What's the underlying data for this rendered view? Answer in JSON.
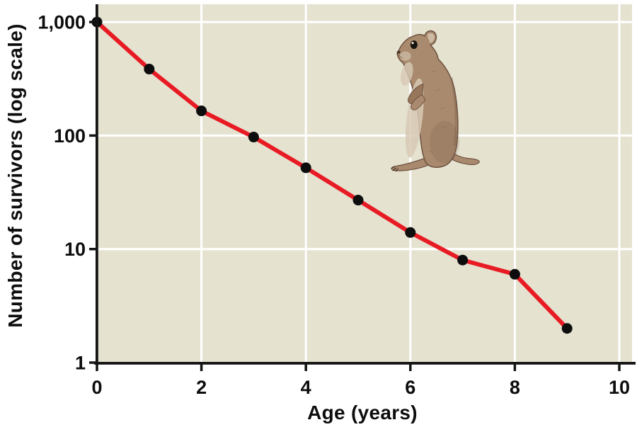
{
  "figure": {
    "background_color": "#ffffff",
    "plot_bg_color": "#e5e2d0",
    "grid_color": "#ffffff",
    "line_color": "#e81b24",
    "point_color": "#0d0d0d",
    "axis_color": "#141414",
    "label_color": "#0d0d0d"
  },
  "chart_data": {
    "type": "line",
    "title": "",
    "xlabel": "Age (years)",
    "ylabel": "Number of survivors (log scale)",
    "x": [
      0,
      1,
      2,
      3,
      4,
      5,
      6,
      7,
      8,
      9
    ],
    "values": [
      1000,
      385,
      165,
      97,
      52,
      27,
      14,
      8,
      6,
      2
    ],
    "series_name": "survivors",
    "y_scale": "log",
    "xlim": [
      0,
      10.3
    ],
    "ylim": [
      1,
      1000
    ],
    "x_ticks": [
      0,
      2,
      4,
      6,
      8,
      10
    ],
    "x_tick_labels": [
      "0",
      "2",
      "4",
      "6",
      "8",
      "10"
    ],
    "y_tick_values": [
      1000,
      100,
      10,
      1
    ],
    "y_tick_labels": [
      "1,000",
      "100",
      "10",
      "1"
    ],
    "grid": true,
    "legend": "none",
    "annotation": "ground-squirrel-illustration"
  },
  "illustration": {
    "name": "ground squirrel standing upright",
    "fur_main": "#a98a6e",
    "fur_mid": "#97775c",
    "fur_dark": "#6e5240",
    "belly": "#d7c9b5",
    "ear_inner": "#cdbaa5",
    "eye": "#16120e",
    "claw": "#3c2c22"
  }
}
